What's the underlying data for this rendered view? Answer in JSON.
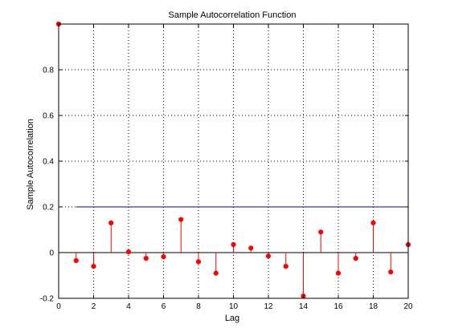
{
  "chart_data": {
    "type": "stem",
    "title": "Sample Autocorrelation Function",
    "xlabel": "Lag",
    "ylabel": "Sample Autocorrelation",
    "xlim": [
      0,
      20
    ],
    "ylim": [
      -0.2,
      1.0
    ],
    "grid": true,
    "x_ticks": [
      "0",
      "2",
      "4",
      "6",
      "8",
      "10",
      "12",
      "14",
      "16",
      "18",
      "20"
    ],
    "y_ticks": [
      "-0.2",
      "0",
      "0.2",
      "0.4",
      "0.6",
      "0.8"
    ],
    "series": [
      {
        "x": [
          0,
          1,
          2,
          3,
          4,
          5,
          6,
          7,
          8,
          9,
          10,
          11,
          12,
          13,
          14,
          15,
          16,
          17,
          18,
          19,
          20
        ],
        "values": [
          1.0,
          -0.035,
          -0.06,
          0.13,
          0.003,
          -0.025,
          -0.018,
          0.145,
          -0.04,
          -0.09,
          0.035,
          0.02,
          -0.015,
          -0.06,
          -0.19,
          0.09,
          -0.09,
          -0.025,
          0.13,
          -0.085,
          0.035
        ],
        "color": "#ff0000"
      }
    ],
    "reference_lines": [
      {
        "y": 0.2,
        "color": "#0000aa"
      }
    ],
    "colors": {
      "stem": "#ff0000",
      "bound": "#0000aa",
      "axis": "#000000",
      "grid": "#000000"
    }
  }
}
